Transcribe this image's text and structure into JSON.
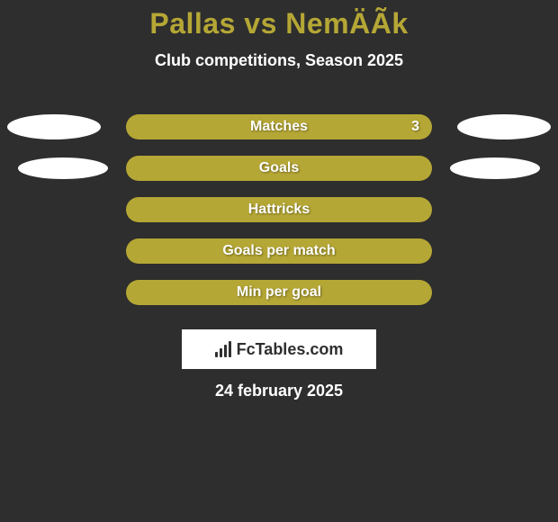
{
  "header": {
    "title": "Pallas vs NemÄÃk",
    "subtitle": "Club competitions, Season 2025",
    "title_color": "#b5a735",
    "subtitle_color": "#ffffff"
  },
  "rows": [
    {
      "label": "Matches",
      "value": "3",
      "left_bubble": true,
      "right_bubble": true,
      "bubble_narrow": false
    },
    {
      "label": "Goals",
      "value": "",
      "left_bubble": true,
      "right_bubble": true,
      "bubble_narrow": true
    },
    {
      "label": "Hattricks",
      "value": "",
      "left_bubble": false,
      "right_bubble": false,
      "bubble_narrow": false
    },
    {
      "label": "Goals per match",
      "value": "",
      "left_bubble": false,
      "right_bubble": false,
      "bubble_narrow": false
    },
    {
      "label": "Min per goal",
      "value": "",
      "left_bubble": false,
      "right_bubble": false,
      "bubble_narrow": false
    }
  ],
  "footer": {
    "brand": "FcTables.com",
    "date": "24 february 2025"
  },
  "style": {
    "background_color": "#2e2e2e",
    "pill_color": "#b5a735",
    "pill_text_color": "#ffffff",
    "bubble_color": "#ffffff",
    "footer_box_bg": "#ffffff",
    "footer_text_color": "#2e2e2e",
    "pill_width": 340,
    "pill_height": 28,
    "pill_radius": 14,
    "bubble_width": 104,
    "bubble_height": 28,
    "title_fontsize": 32,
    "label_fontsize": 16,
    "type": "infographic"
  }
}
